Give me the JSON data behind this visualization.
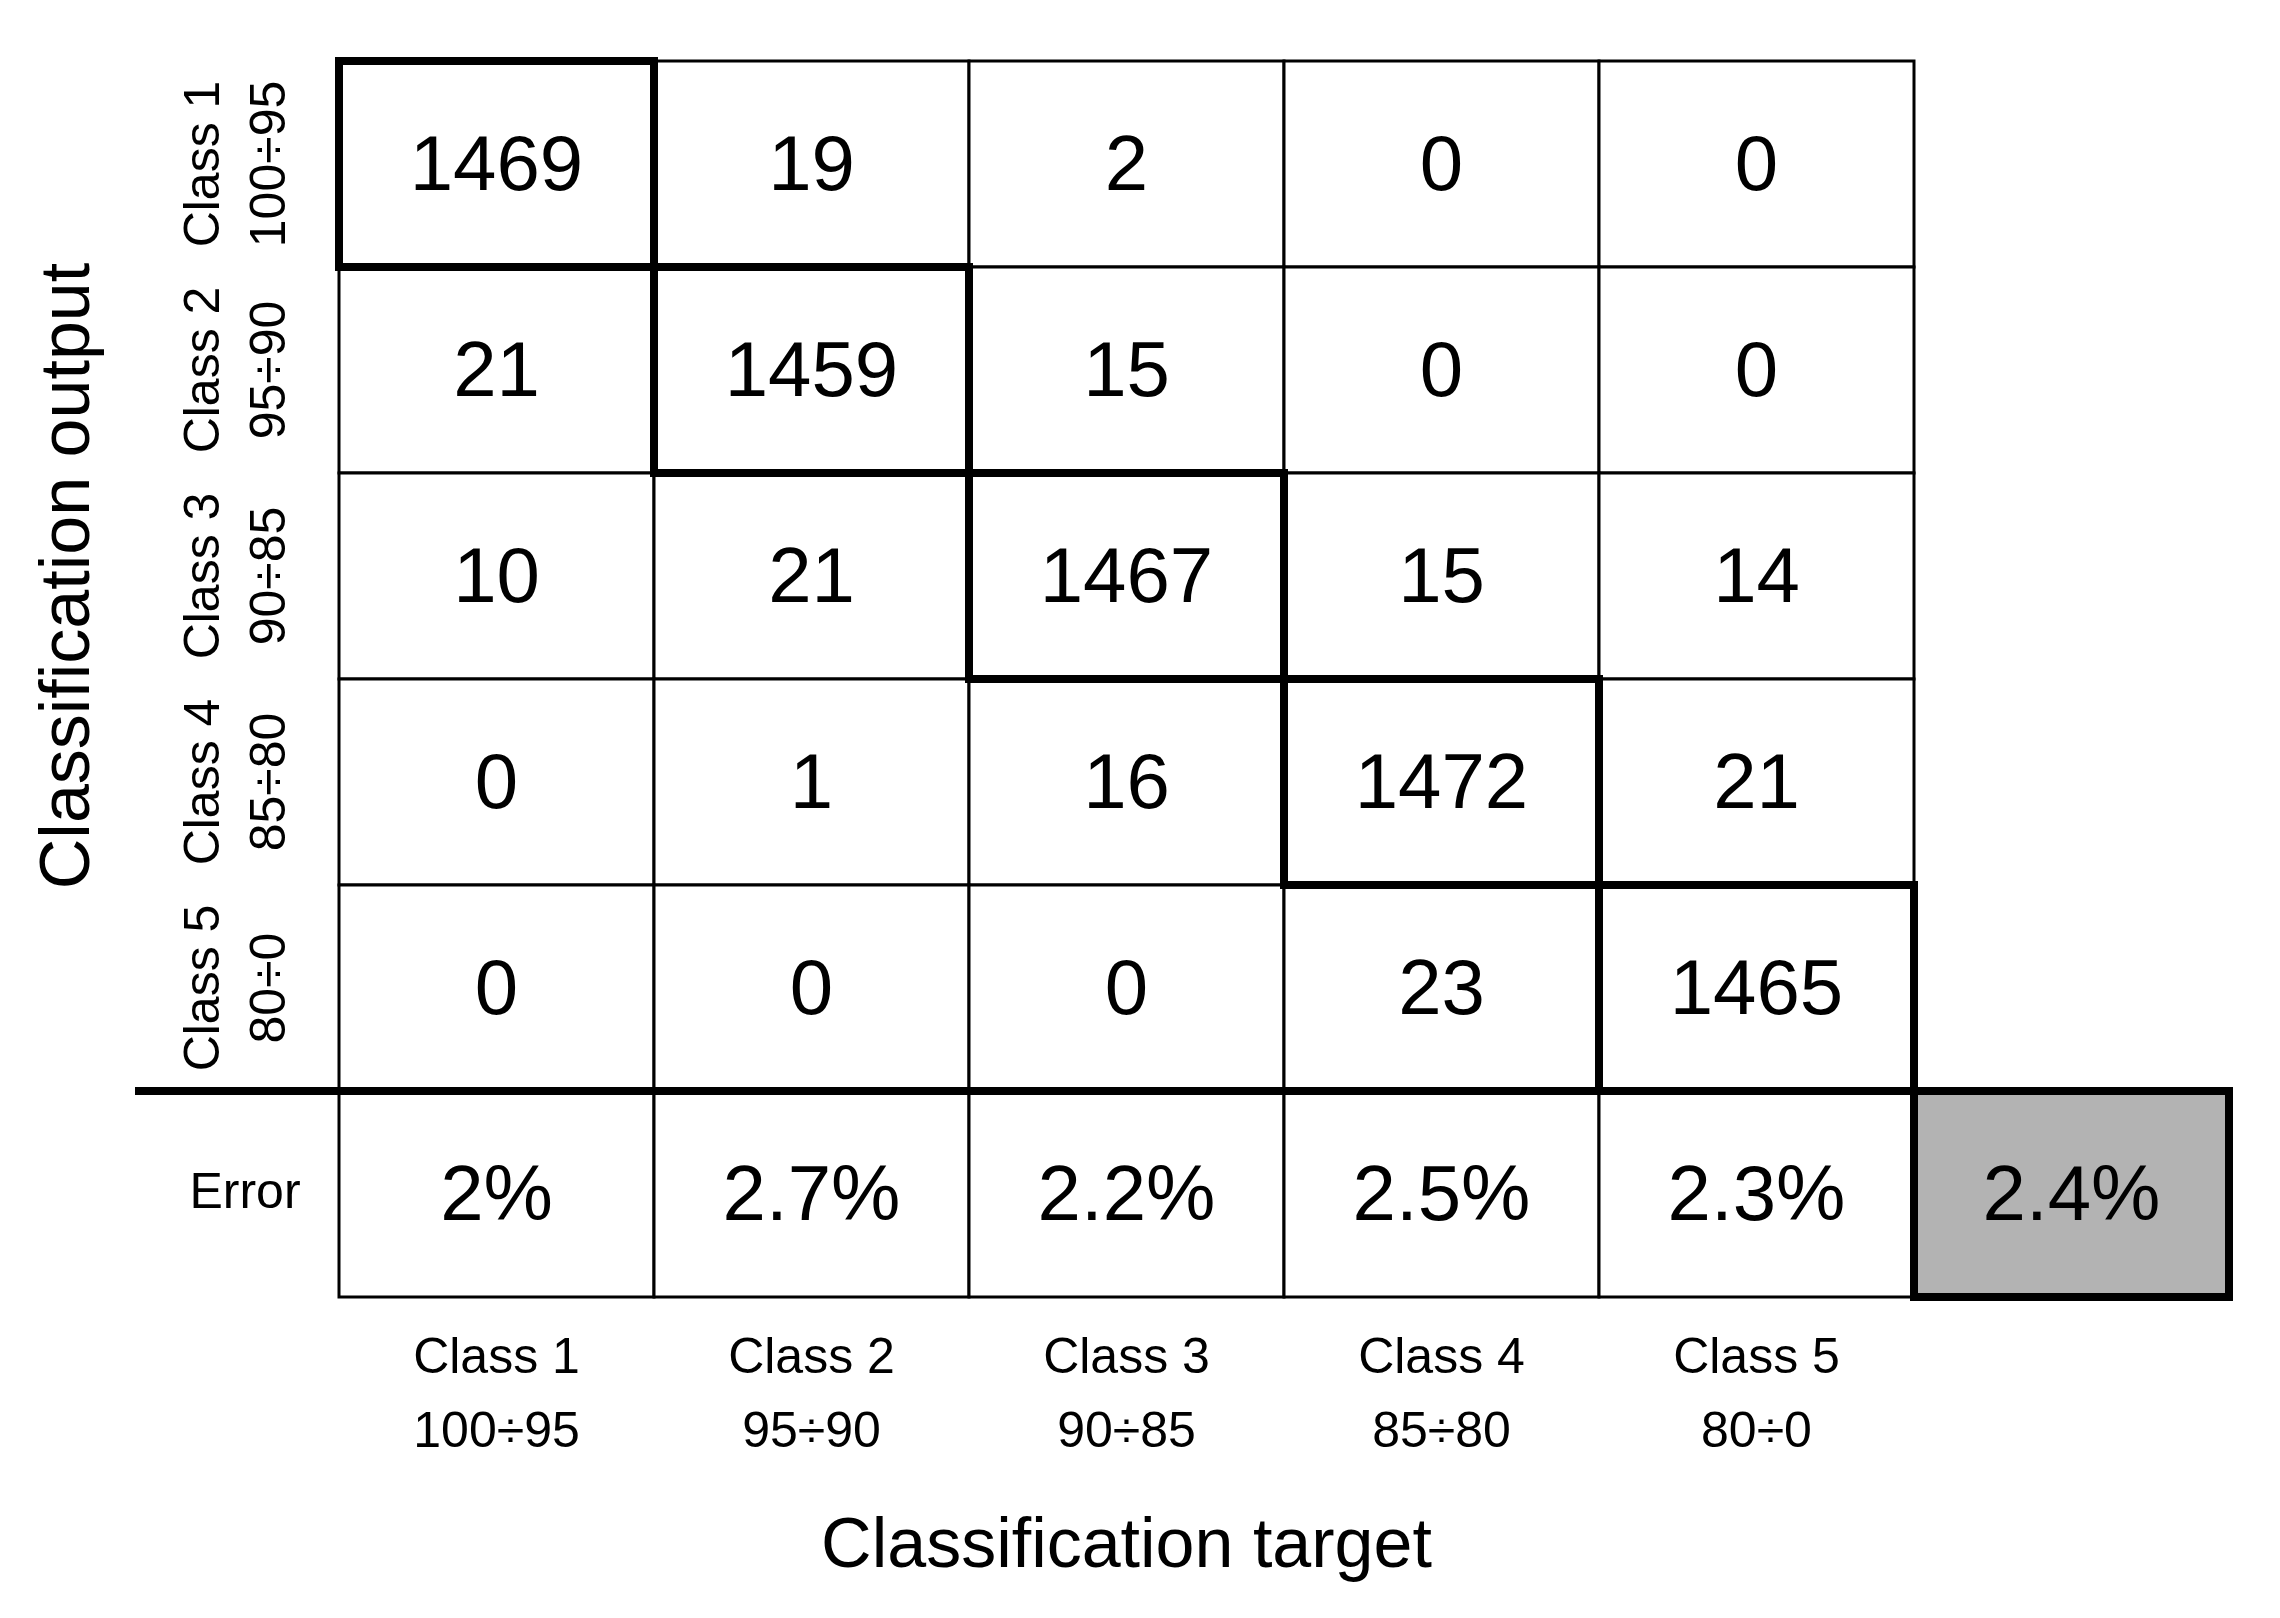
{
  "chart_data": {
    "type": "heatmap",
    "xlabel": "Classification target",
    "ylabel": "Classification output",
    "categories": [
      "Class 1\n100÷95",
      "Class 2\n95÷90",
      "Class 3\n90÷85",
      "Class 4\n85÷80",
      "Class 5\n80÷0",
      null
    ],
    "y_categories": [
      "Class 1\n100÷95",
      "Class 2\n95÷90",
      "Class 3\n90÷85",
      "Class 4\n85÷80",
      "Class 5\n80÷0",
      "Error"
    ],
    "cells": [
      [
        1469,
        19,
        2,
        0,
        0,
        null
      ],
      [
        21,
        1459,
        15,
        0,
        0,
        null
      ],
      [
        10,
        21,
        1467,
        15,
        14,
        null
      ],
      [
        0,
        1,
        16,
        1472,
        21,
        null
      ],
      [
        0,
        0,
        0,
        23,
        1465,
        null
      ],
      [
        2,
        2.7,
        2.2,
        2.5,
        2.3,
        2.4
      ]
    ],
    "cell_labels": [
      [
        "1469",
        "19",
        "2",
        "0",
        "0",
        null
      ],
      [
        "21",
        "1459",
        "15",
        "0",
        "0",
        null
      ],
      [
        "10",
        "21",
        "1467",
        "15",
        "14",
        null
      ],
      [
        "0",
        "1",
        "16",
        "1472",
        "21",
        null
      ],
      [
        "0",
        "0",
        "0",
        "23",
        "1465",
        null
      ],
      [
        "2%",
        "2.7%",
        "2.2%",
        "2.5%",
        "2.3%",
        "2.4%"
      ]
    ]
  }
}
